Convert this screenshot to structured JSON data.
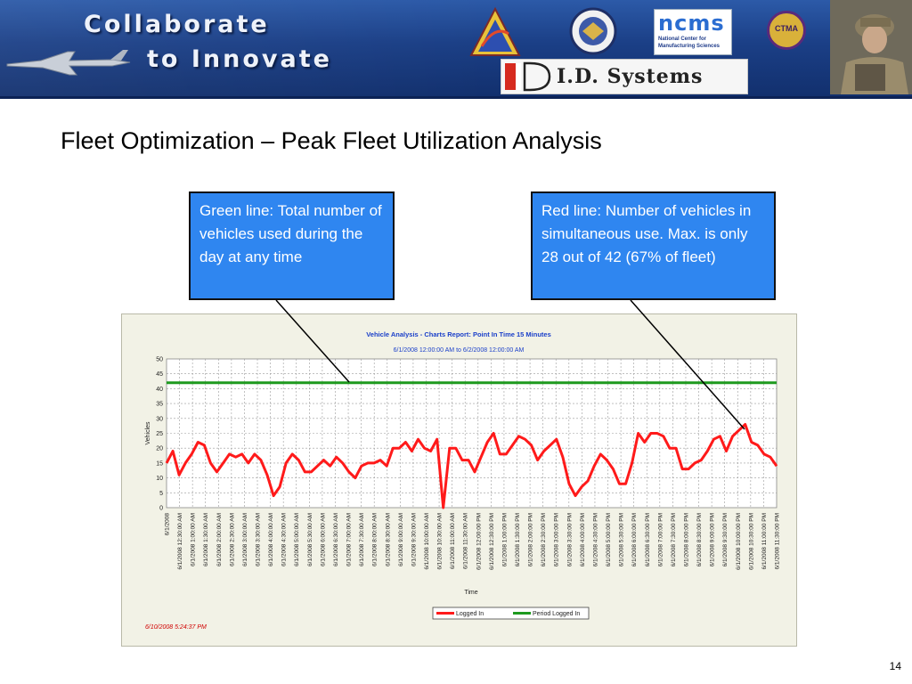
{
  "banner": {
    "line1": "Collaborate",
    "line2": "to Innovate",
    "logo_ncms": "ncms",
    "logo_ncms_sub1": "National Center for",
    "logo_ncms_sub2": "Manufacturing Sciences",
    "logo_ctma": "CTMA",
    "logo_ids": "I.D. Systems"
  },
  "slide": {
    "title": "Fleet Optimization – Peak Fleet Utilization Analysis",
    "page_number": "14"
  },
  "callouts": {
    "green": "Green line: Total number of vehicles used during the day at any time",
    "red": "Red line: Number of vehicles in simultaneous use. Max. is only 28 out of 42 (67% of fleet)"
  },
  "colors": {
    "logged_in": "#ff1a1a",
    "period_logged_in": "#1e9a1e",
    "callout_bg": "#2f86f0",
    "chart_title": "#1a3fc9"
  },
  "chart_data": {
    "type": "line",
    "title": "Vehicle Analysis - Charts Report: Point In Time 15 Minutes",
    "subtitle": "6/1/2008 12:00:00 AM to 6/2/2008 12:00:00 AM",
    "xlabel": "Time",
    "ylabel": "Vehicles",
    "ylim": [
      0,
      50
    ],
    "yticks": [
      0,
      5,
      10,
      15,
      20,
      25,
      30,
      35,
      40,
      45,
      50
    ],
    "grid": true,
    "legend_position": "bottom",
    "x_tick_labels": [
      "6/1/2008",
      "6/1/2008 12:30:00 AM",
      "6/1/2008 1:00:00 AM",
      "6/1/2008 1:30:00 AM",
      "6/1/2008 2:00:00 AM",
      "6/1/2008 2:30:00 AM",
      "6/1/2008 3:00:00 AM",
      "6/1/2008 3:30:00 AM",
      "6/1/2008 4:00:00 AM",
      "6/1/2008 4:30:00 AM",
      "6/1/2008 5:00:00 AM",
      "6/1/2008 5:30:00 AM",
      "6/1/2008 6:00:00 AM",
      "6/1/2008 6:30:00 AM",
      "6/1/2008 7:00:00 AM",
      "6/1/2008 7:30:00 AM",
      "6/1/2008 8:00:00 AM",
      "6/1/2008 8:30:00 AM",
      "6/1/2008 9:00:00 AM",
      "6/1/2008 9:30:00 AM",
      "6/1/2008 10:00:00 AM",
      "6/1/2008 10:30:00 AM",
      "6/1/2008 11:00:00 AM",
      "6/1/2008 11:30:00 AM",
      "6/1/2008 12:00:00 PM",
      "6/1/2008 12:30:00 PM",
      "6/1/2008 1:00:00 PM",
      "6/1/2008 1:30:00 PM",
      "6/1/2008 2:00:00 PM",
      "6/1/2008 2:30:00 PM",
      "6/1/2008 3:00:00 PM",
      "6/1/2008 3:30:00 PM",
      "6/1/2008 4:00:00 PM",
      "6/1/2008 4:30:00 PM",
      "6/1/2008 5:00:00 PM",
      "6/1/2008 5:30:00 PM",
      "6/1/2008 6:00:00 PM",
      "6/1/2008 6:30:00 PM",
      "6/1/2008 7:00:00 PM",
      "6/1/2008 7:30:00 PM",
      "6/1/2008 8:00:00 PM",
      "6/1/2008 8:30:00 PM",
      "6/1/2008 9:00:00 PM",
      "6/1/2008 9:30:00 PM",
      "6/1/2008 10:00:00 PM",
      "6/1/2008 10:30:00 PM",
      "6/1/2008 11:00:00 PM",
      "6/1/2008 11:30:00 PM"
    ],
    "series": [
      {
        "name": "Logged In",
        "color": "#ff1a1a",
        "values": [
          15,
          19,
          11,
          15,
          18,
          22,
          21,
          15,
          12,
          15,
          18,
          17,
          18,
          15,
          18,
          16,
          11,
          4,
          7,
          15,
          18,
          16,
          12,
          12,
          14,
          16,
          14,
          17,
          15,
          12,
          10,
          14,
          15,
          15,
          16,
          14,
          20,
          20,
          22,
          19,
          23,
          20,
          19,
          23,
          0,
          20,
          20,
          16,
          16,
          12,
          17,
          22,
          25,
          18,
          18,
          21,
          24,
          23,
          21,
          16,
          19,
          21,
          23,
          17,
          8,
          4,
          7,
          9,
          14,
          18,
          16,
          13,
          8,
          8,
          15,
          25,
          22,
          25,
          25,
          24,
          20,
          20,
          13,
          13,
          15,
          16,
          19,
          23,
          24,
          19,
          24,
          26,
          28,
          22,
          21,
          18,
          17,
          14
        ]
      },
      {
        "name": "Period Logged In",
        "color": "#1e9a1e",
        "values": [
          42,
          42
        ]
      }
    ],
    "timestamp": "6/10/2008 5:24:37 PM"
  }
}
